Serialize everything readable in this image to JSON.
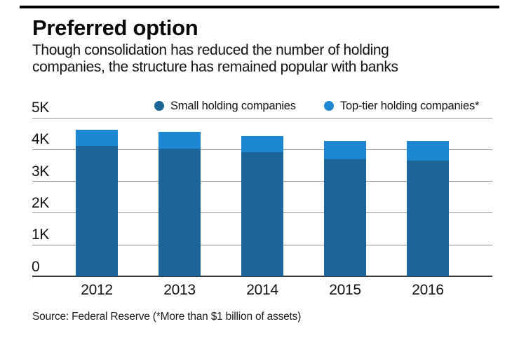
{
  "header": {
    "title": "Preferred option",
    "subtitle_line1": "Though consolidation has reduced the number of holding",
    "subtitle_line2": "companies, the structure has remained popular with banks"
  },
  "chart_data": {
    "type": "bar",
    "stacked": true,
    "title": "Preferred option",
    "categories": [
      "2012",
      "2013",
      "2014",
      "2015",
      "2016"
    ],
    "series": [
      {
        "name": "Small holding companies",
        "color": "#1b6599",
        "values": [
          4120,
          4030,
          3920,
          3700,
          3650
        ]
      },
      {
        "name": "Top-tier holding companies*",
        "color": "#1e87d2",
        "values": [
          500,
          530,
          510,
          570,
          620
        ]
      }
    ],
    "xlabel": "",
    "ylabel": "",
    "ylim": [
      0,
      5000
    ],
    "yticks": [
      {
        "label": "5K",
        "value": 5000
      },
      {
        "label": "4K",
        "value": 4000
      },
      {
        "label": "3K",
        "value": 3000
      },
      {
        "label": "2K",
        "value": 2000
      },
      {
        "label": "1K",
        "value": 1000
      },
      {
        "label": "0",
        "value": 0
      }
    ],
    "grid": true,
    "legend_position": "top"
  },
  "footer": {
    "source": "Source: Federal Reserve (*More than $1 billion of assets)"
  },
  "colors": {
    "small_series": "#1b6599",
    "top_tier_series": "#1e87d2",
    "gridline": "#8f8f8f",
    "axis_baseline": "#3a3a3a",
    "top_rule": "#000000",
    "text": "#111111",
    "background": "#ffffff"
  }
}
